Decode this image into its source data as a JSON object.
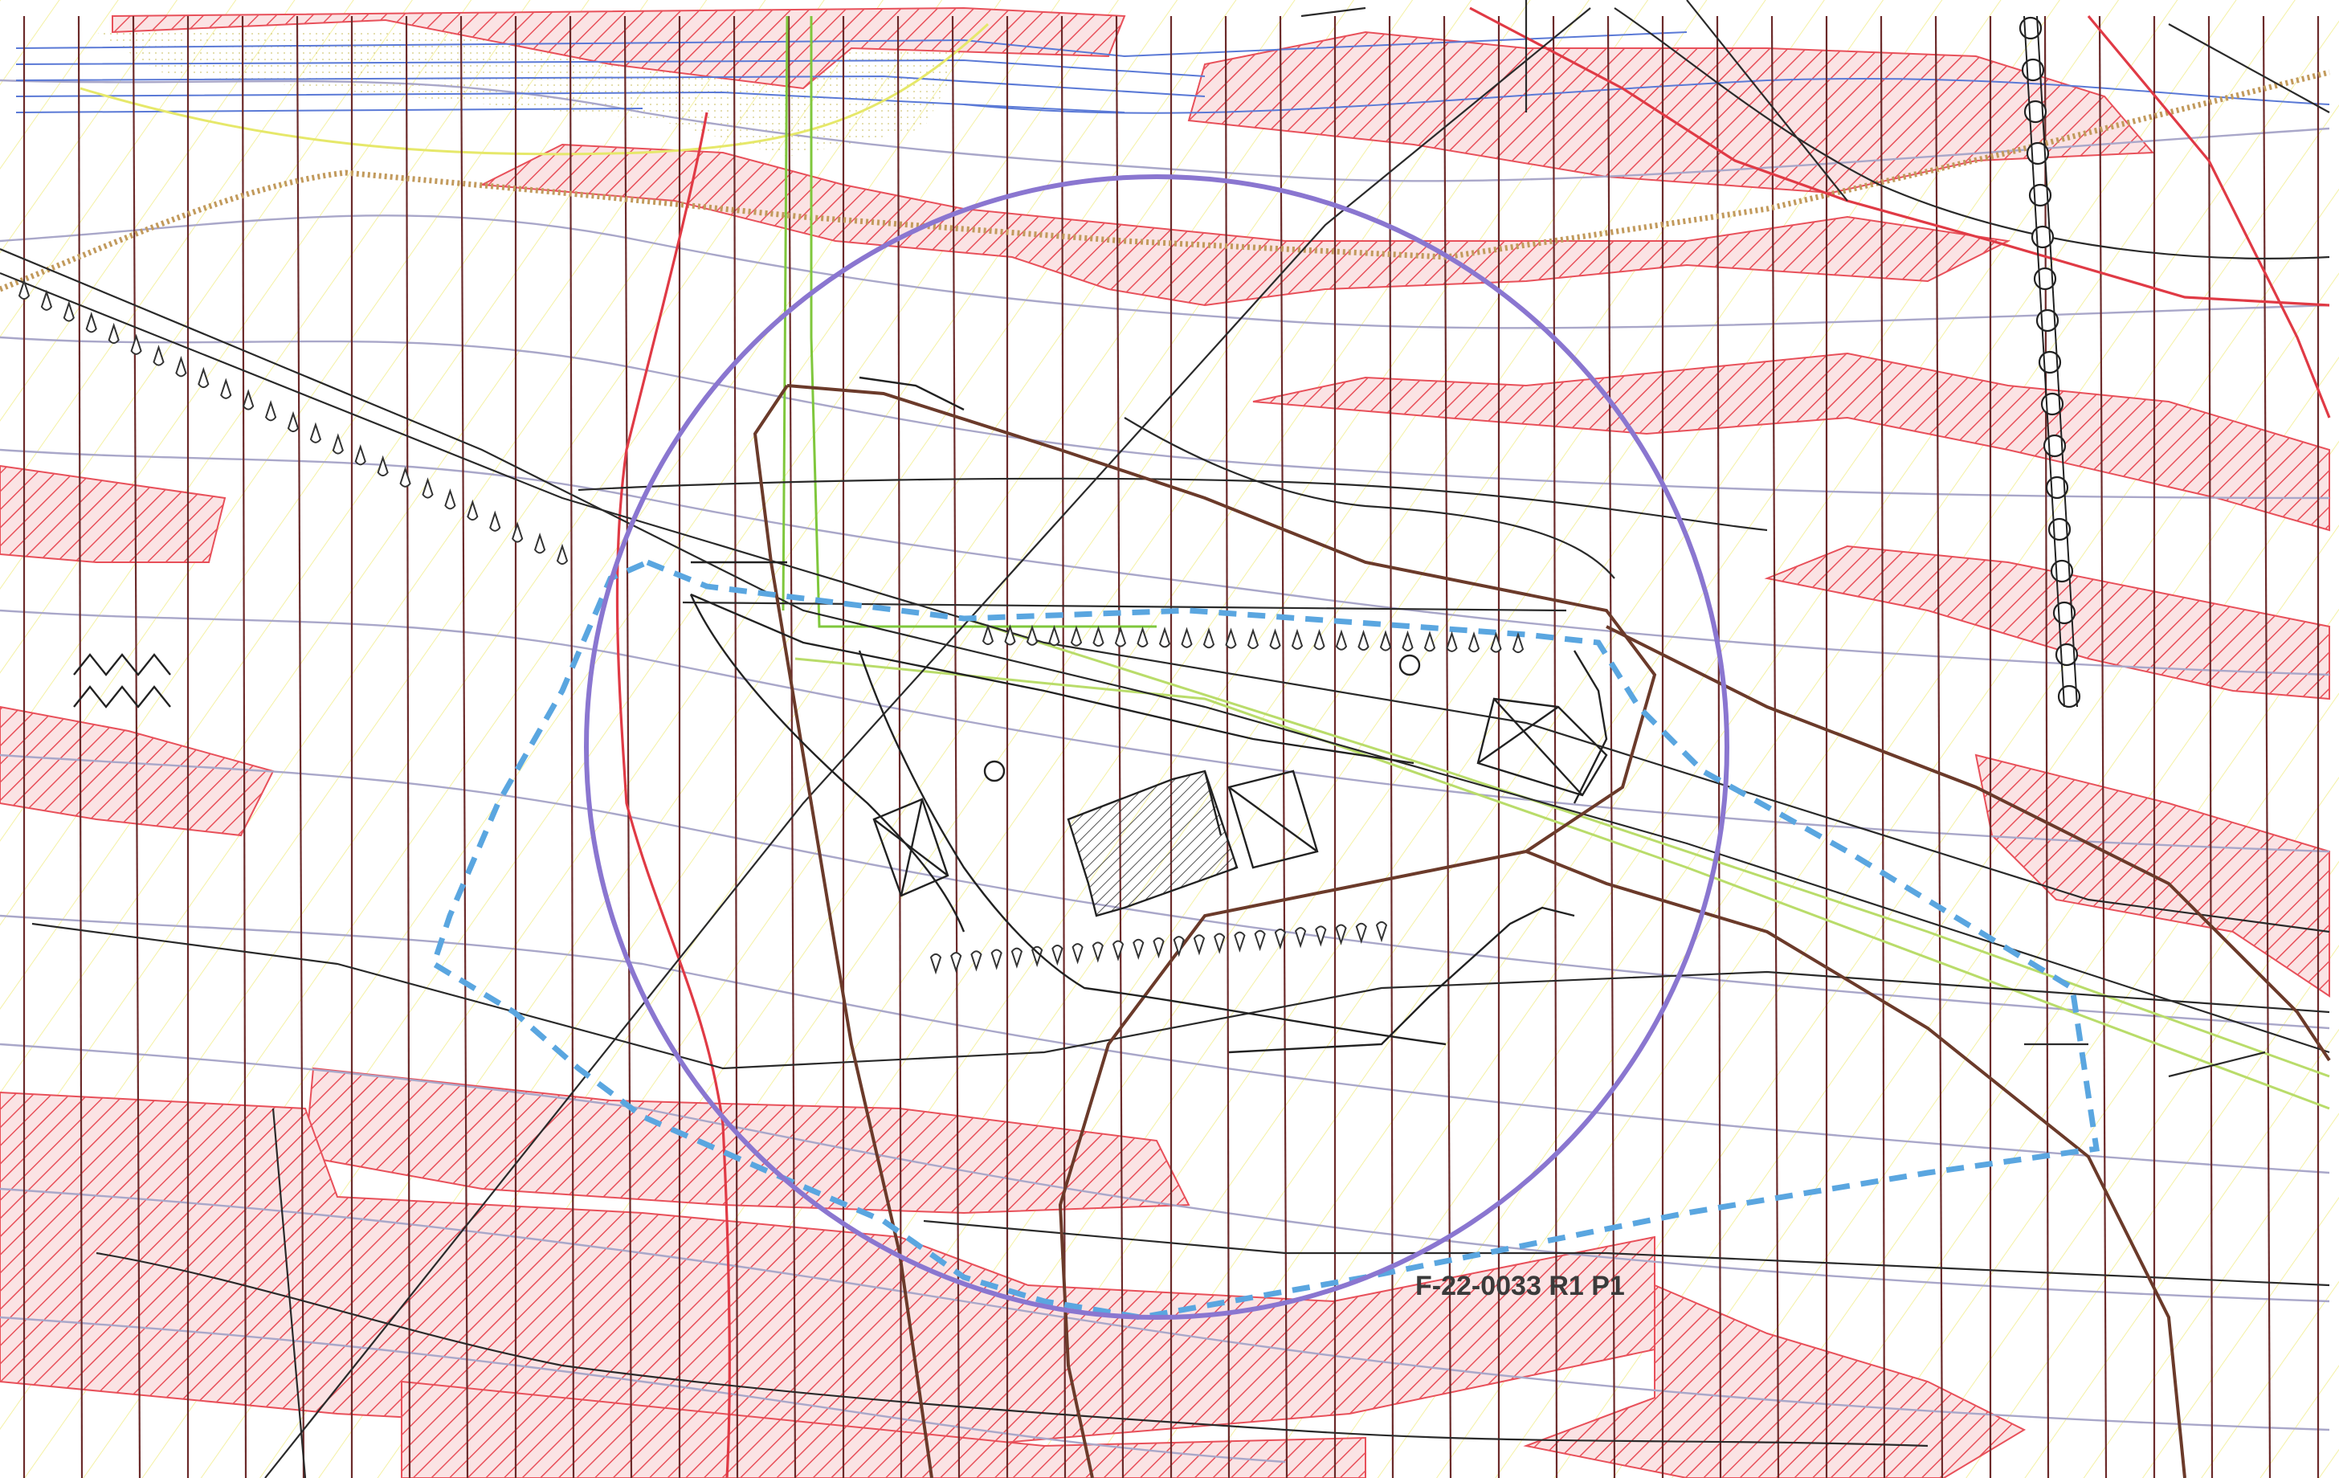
{
  "map": {
    "parcel_label": "F-22-0033 R1 P1",
    "colors": {
      "hatch_red": "#e8505a",
      "hatch_yellow": "#f3ef9a",
      "vertical_line": "#6b2a2a",
      "contour": "#a9a7c9",
      "blue_lines": "#5a79d6",
      "circle": "#8a76d0",
      "parcel_boundary": "#5aa6e0",
      "dotted_brown": "#c29a5c",
      "green_line": "#7fc73c",
      "light_green_line": "#b9dc6a",
      "red_line": "#e03a45",
      "brown_path": "#6b3a2a",
      "black_line": "#2a2a2a"
    },
    "icons": [
      "slope-triangle-icon",
      "well-circle-icon",
      "zigzag-symbol-icon",
      "building-hatch-icon",
      "x-box-icon"
    ]
  }
}
